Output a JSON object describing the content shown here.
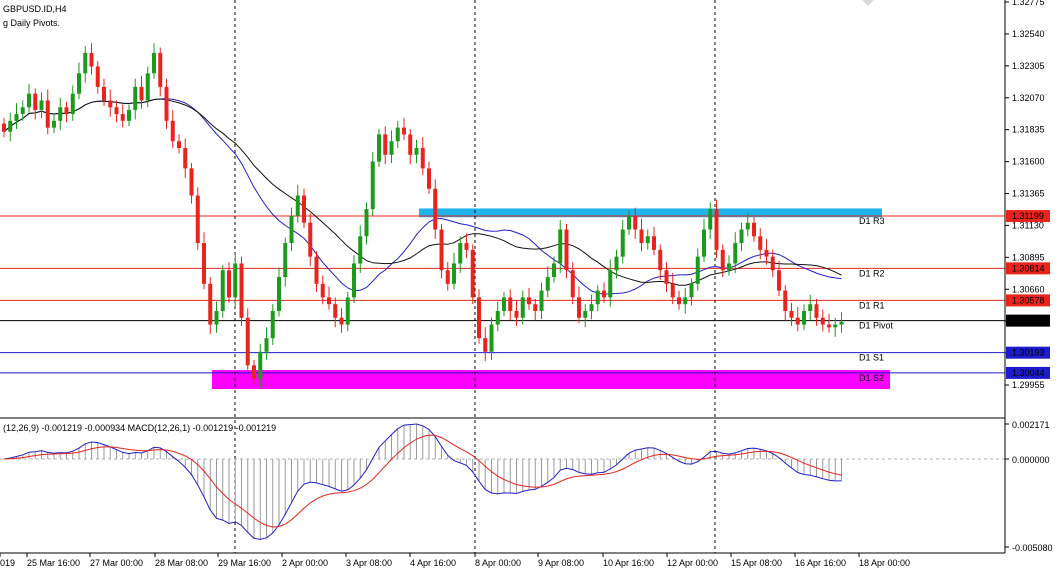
{
  "header": {
    "symbol": "GBPUSD.ID,H4",
    "indicator": "g Daily Pivots."
  },
  "macd_header": "(12,26,9) -0.001219 -0.000934 MACD(12,26,1) -0.001219 -0.001219",
  "colors": {
    "bull": "#1c9a1c",
    "bear": "#e8241c",
    "r_line": "#e8241c",
    "s_line": "#1c1ccc",
    "pivot_line": "#000000",
    "ma_fast": "#2020c8",
    "ma_slow": "#111111",
    "cyan_zone": "#1fb4ec",
    "magenta_zone": "#ff00ff",
    "macd_line": "#2020c8",
    "signal_line": "#e8241c",
    "hist": "#9a9a9a"
  },
  "chart_data": {
    "type": "candlestick",
    "symbol": "GBPUSD.ID",
    "timeframe": "H4",
    "price_axis": {
      "ticks": [
        "1.32775",
        "1.32540",
        "1.32305",
        "1.32070",
        "1.31835",
        "1.31600",
        "1.31365",
        "1.31130",
        "1.30895",
        "1.30660",
        "1.30425",
        "1.30190",
        "1.29955"
      ],
      "range": [
        1.2985,
        1.328
      ]
    },
    "time_axis": [
      "019",
      "25 Mar 16:00",
      "27 Mar 00:00",
      "28 Mar 08:00",
      "29 Mar 16:00",
      "2 Apr 00:00",
      "3 Apr 08:00",
      "4 Apr 16:00",
      "8 Apr 00:00",
      "9 Apr 08:00",
      "10 Apr 16:00",
      "12 Apr 00:00",
      "15 Apr 08:00",
      "16 Apr 16:00",
      "18 Apr 00:00"
    ],
    "levels": [
      {
        "name": "D1 R3",
        "price": 1.31199,
        "tag": "1.31199",
        "kind": "r"
      },
      {
        "name": "D1 R2",
        "price": 1.30814,
        "tag": "1.30814",
        "kind": "r"
      },
      {
        "name": "D1 R1",
        "price": 1.30578,
        "tag": "1.30578",
        "kind": "r"
      },
      {
        "name": "D1 Pivot",
        "price": 1.30429,
        "tag": "1.30429",
        "kind": "p"
      },
      {
        "name": "D1 S1",
        "price": 1.30193,
        "tag": "1.30193",
        "kind": "s"
      },
      {
        "name": "D1 S2",
        "price": 1.30044,
        "tag": "1.30044",
        "kind": "s"
      }
    ],
    "zones": [
      {
        "from": 1.3119,
        "to": 1.31255,
        "kind": "cyan"
      },
      {
        "from": 1.29925,
        "to": 1.30065,
        "kind": "magenta"
      }
    ],
    "closes": [
      1.3182,
      1.319,
      1.3195,
      1.32,
      1.321,
      1.3198,
      1.3205,
      1.3185,
      1.319,
      1.32,
      1.3195,
      1.321,
      1.3225,
      1.324,
      1.323,
      1.3215,
      1.3205,
      1.32,
      1.3195,
      1.319,
      1.3198,
      1.3215,
      1.3205,
      1.3225,
      1.324,
      1.3215,
      1.319,
      1.3175,
      1.317,
      1.3155,
      1.3135,
      1.31,
      1.307,
      1.304,
      1.305,
      1.308,
      1.306,
      1.3085,
      1.3045,
      1.301,
      1.3,
      1.302,
      1.303,
      1.305,
      1.3075,
      1.31,
      1.312,
      1.3135,
      1.3115,
      1.309,
      1.307,
      1.306,
      1.3055,
      1.3045,
      1.304,
      1.306,
      1.3085,
      1.3105,
      1.3125,
      1.316,
      1.318,
      1.3165,
      1.3175,
      1.3185,
      1.318,
      1.3165,
      1.317,
      1.3155,
      1.314,
      1.311,
      1.308,
      1.307,
      1.3085,
      1.31,
      1.3095,
      1.306,
      1.303,
      1.302,
      1.304,
      1.305,
      1.306,
      1.305,
      1.3045,
      1.306,
      1.3055,
      1.305,
      1.3065,
      1.3075,
      1.3085,
      1.311,
      1.308,
      1.306,
      1.3045,
      1.305,
      1.3055,
      1.3065,
      1.306,
      1.308,
      1.309,
      1.311,
      1.312,
      1.311,
      1.31,
      1.3105,
      1.3095,
      1.308,
      1.307,
      1.306,
      1.3055,
      1.306,
      1.307,
      1.309,
      1.311,
      1.3125,
      1.3095,
      1.308,
      1.3085,
      1.31,
      1.311,
      1.3115,
      1.3105,
      1.3095,
      1.309,
      1.308,
      1.3065,
      1.305,
      1.3045,
      1.304,
      1.305,
      1.3055,
      1.3045,
      1.304,
      1.3038,
      1.304,
      1.3042
    ]
  }
}
